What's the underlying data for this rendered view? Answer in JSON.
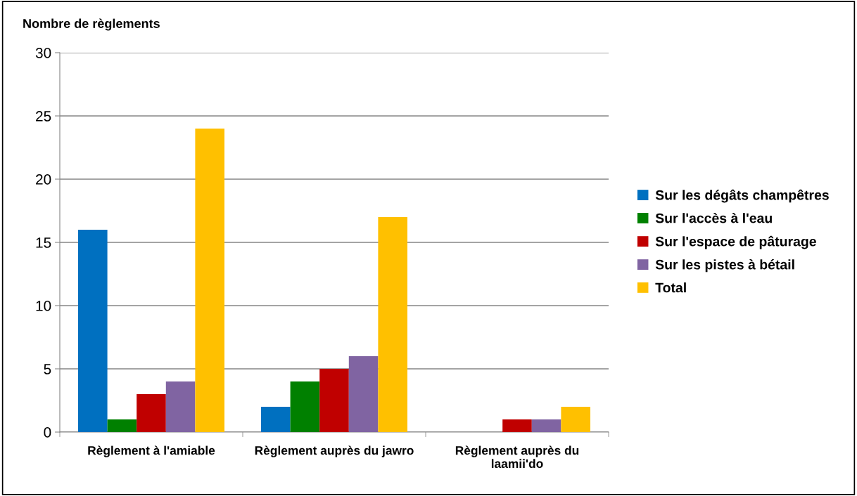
{
  "chart_data": {
    "type": "bar",
    "ylabel": "Nombre de règlements",
    "categories": [
      "Règlement à l'amiable",
      "Règlement auprès du jawro",
      "Règlement auprès du laamii'do"
    ],
    "series": [
      {
        "name": "Sur les dégâts champêtres",
        "color": "#0070c0",
        "values": [
          16,
          2,
          0
        ]
      },
      {
        "name": "Sur l'accès à l'eau",
        "color": "#008000",
        "values": [
          1,
          4,
          0
        ]
      },
      {
        "name": "Sur l'espace de pâturage",
        "color": "#c00000",
        "values": [
          3,
          5,
          1
        ]
      },
      {
        "name": "Sur les pistes à bétail",
        "color": "#8064a2",
        "values": [
          4,
          6,
          1
        ]
      },
      {
        "name": "Total",
        "color": "#ffc000",
        "values": [
          24,
          17,
          2
        ]
      }
    ],
    "ylim": [
      0,
      30
    ],
    "yticks": [
      0,
      5,
      10,
      15,
      20,
      25,
      30
    ],
    "grid": "y",
    "legend": "right"
  }
}
